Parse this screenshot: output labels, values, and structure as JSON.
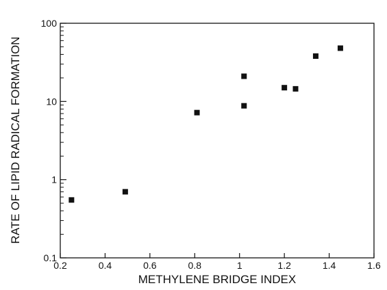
{
  "chart_data": {
    "type": "scatter",
    "title": "",
    "xlabel": "METHYLENE BRIDGE INDEX",
    "ylabel": "RATE OF LIPID RADICAL FORMATION",
    "xlim": [
      0.2,
      1.6
    ],
    "ylim": [
      0.1,
      100
    ],
    "y_scale": "log",
    "grid": false,
    "legend": "none",
    "x_tick_labels": [
      "0.2",
      "0.4",
      "0.6",
      "0.8",
      "1",
      "1.2",
      "1.4",
      "1.6"
    ],
    "y_tick_labels": [
      "0.1",
      "1",
      "10",
      "100"
    ],
    "series": [
      {
        "points": [
          {
            "x": 0.25,
            "y": 0.55
          },
          {
            "x": 0.49,
            "y": 0.7
          },
          {
            "x": 0.81,
            "y": 7.2
          },
          {
            "x": 1.02,
            "y": 21
          },
          {
            "x": 1.02,
            "y": 8.8
          },
          {
            "x": 1.2,
            "y": 15
          },
          {
            "x": 1.25,
            "y": 14.5
          },
          {
            "x": 1.34,
            "y": 38
          },
          {
            "x": 1.45,
            "y": 48
          }
        ],
        "marker": "square",
        "color": "#111111"
      }
    ]
  }
}
